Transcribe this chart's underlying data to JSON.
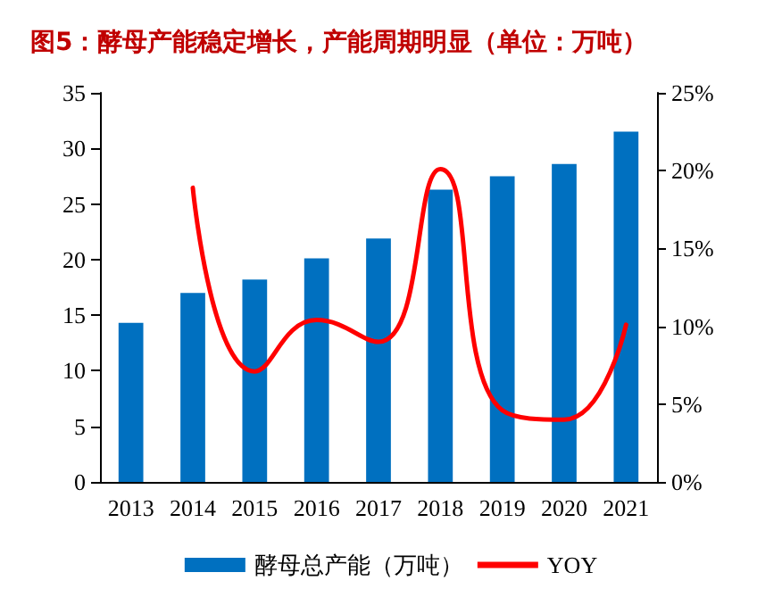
{
  "chart_data": {
    "type": "bar",
    "title": "图5：酵母产能稳定增长，产能周期明显（单位：万吨）",
    "categories": [
      "2013",
      "2014",
      "2015",
      "2016",
      "2017",
      "2018",
      "2019",
      "2020",
      "2021"
    ],
    "series": [
      {
        "name": "酵母总产能（万吨）",
        "color": "#0070c0",
        "values": [
          14.3,
          17.0,
          18.2,
          20.1,
          21.9,
          26.3,
          27.5,
          28.6,
          31.5
        ]
      },
      {
        "name": "YOY",
        "type": "line",
        "axis": "y2",
        "color": "#ff0000",
        "line_style": "solid",
        "marker": "none",
        "values": [
          null,
          18.9,
          7.1,
          10.4,
          9.0,
          20.1,
          4.6,
          4.0,
          10.1
        ]
      }
    ],
    "ylim": [
      0,
      35
    ],
    "yticks": [
      0,
      5,
      10,
      15,
      20,
      25,
      30,
      35
    ],
    "y2lim": [
      0,
      25
    ],
    "y2ticks": [
      {
        "value": 0,
        "label": "0%"
      },
      {
        "value": 5,
        "label": "5%"
      },
      {
        "value": 10,
        "label": "10%"
      },
      {
        "value": 15,
        "label": "15%"
      },
      {
        "value": 20,
        "label": "20%"
      },
      {
        "value": 25,
        "label": "25%"
      }
    ],
    "grid": false,
    "legend": "bottom"
  }
}
